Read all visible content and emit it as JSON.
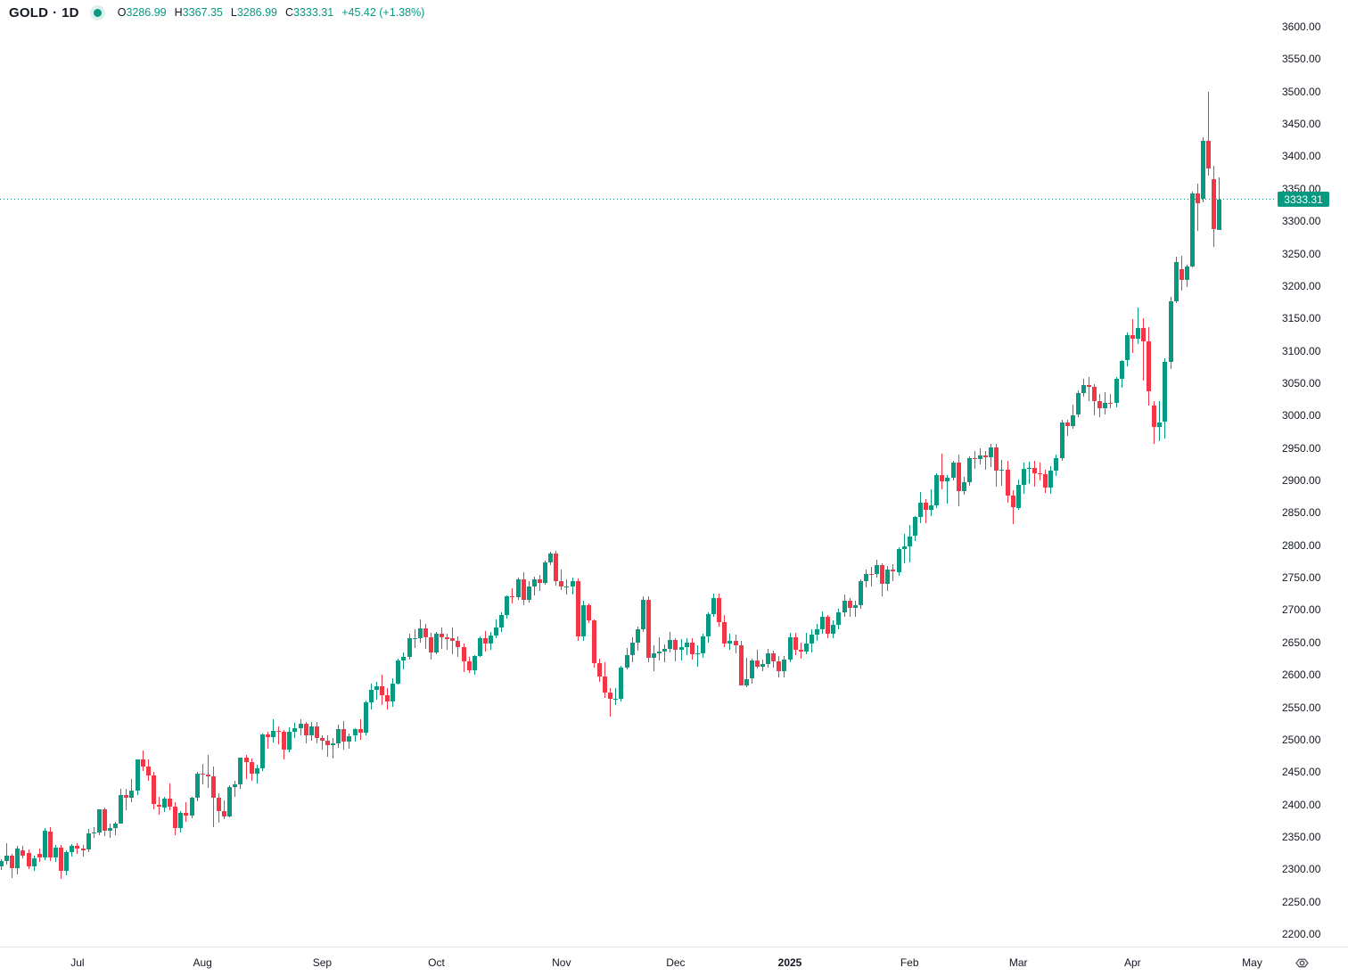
{
  "header": {
    "symbol": "GOLD",
    "separator": "·",
    "interval": "1D",
    "market_status_icon": "market-status-dot",
    "ohlc": {
      "open_label": "O",
      "open": "3286.99",
      "high_label": "H",
      "high": "3367.35",
      "low_label": "L",
      "low": "3286.99",
      "close_label": "C",
      "close": "3333.31",
      "change": "+45.42 (+1.38%)"
    }
  },
  "colors": {
    "up": "#089981",
    "down": "#F23645",
    "text": "#131722",
    "axis_separator": "#e0e3eb",
    "price_line": "#089981",
    "badge_bg": "#089981",
    "badge_text": "#ffffff"
  },
  "price_badge": {
    "label": "3333.31",
    "value": 3333.31
  },
  "chart_data": {
    "type": "candlestick",
    "symbol": "GOLD",
    "interval": "1D",
    "legend": "GOLD · 1D",
    "grid": "off",
    "y_axis": {
      "min": 2200,
      "max": 3600,
      "step": 50,
      "side": "right",
      "tick_labels": [
        "3600.00",
        "3550.00",
        "3500.00",
        "3450.00",
        "3400.00",
        "3350.00",
        "3300.00",
        "3250.00",
        "3200.00",
        "3150.00",
        "3100.00",
        "3050.00",
        "3000.00",
        "2950.00",
        "2900.00",
        "2850.00",
        "2800.00",
        "2750.00",
        "2700.00",
        "2650.00",
        "2600.00",
        "2550.00",
        "2500.00",
        "2450.00",
        "2400.00",
        "2350.00",
        "2300.00",
        "2250.00",
        "2200.00"
      ]
    },
    "x_axis": {
      "labels": [
        {
          "text": "Jul",
          "bar": 14
        },
        {
          "text": "Aug",
          "bar": 37
        },
        {
          "text": "Sep",
          "bar": 59
        },
        {
          "text": "Oct",
          "bar": 80
        },
        {
          "text": "Nov",
          "bar": 103
        },
        {
          "text": "Dec",
          "bar": 124
        },
        {
          "text": "2025",
          "bar": 145,
          "emphasis": true
        },
        {
          "text": "Feb",
          "bar": 167
        },
        {
          "text": "Mar",
          "bar": 187
        },
        {
          "text": "Apr",
          "bar": 208
        },
        {
          "text": "May",
          "bar": 230
        }
      ]
    },
    "last_price": 3333.31,
    "bars_are_ohlc": "each bar = [open, high, low, close]",
    "bars": [
      [
        2305,
        2316,
        2299,
        2313
      ],
      [
        2313,
        2341,
        2308,
        2321
      ],
      [
        2321,
        2324,
        2286,
        2302
      ],
      [
        2302,
        2336,
        2292,
        2332
      ],
      [
        2330,
        2336,
        2317,
        2321
      ],
      [
        2325,
        2331,
        2300,
        2305
      ],
      [
        2305,
        2321,
        2298,
        2317
      ],
      [
        2324,
        2332,
        2311,
        2318
      ],
      [
        2318,
        2364,
        2314,
        2360
      ],
      [
        2358,
        2365,
        2313,
        2318
      ],
      [
        2318,
        2337,
        2311,
        2334
      ],
      [
        2334,
        2338,
        2285,
        2297
      ],
      [
        2297,
        2330,
        2291,
        2327
      ],
      [
        2327,
        2339,
        2319,
        2336
      ],
      [
        2336,
        2341,
        2324,
        2332
      ],
      [
        2332,
        2338,
        2319,
        2330
      ],
      [
        2330,
        2362,
        2327,
        2356
      ],
      [
        2356,
        2365,
        2349,
        2357
      ],
      [
        2357,
        2393,
        2352,
        2392
      ],
      [
        2392,
        2395,
        2351,
        2359
      ],
      [
        2359,
        2371,
        2348,
        2364
      ],
      [
        2364,
        2374,
        2353,
        2371
      ],
      [
        2371,
        2424,
        2370,
        2415
      ],
      [
        2415,
        2424,
        2391,
        2411
      ],
      [
        2411,
        2440,
        2404,
        2422
      ],
      [
        2422,
        2470,
        2414,
        2469
      ],
      [
        2469,
        2483,
        2452,
        2459
      ],
      [
        2459,
        2470,
        2437,
        2445
      ],
      [
        2445,
        2451,
        2392,
        2400
      ],
      [
        2400,
        2412,
        2384,
        2396
      ],
      [
        2396,
        2412,
        2388,
        2409
      ],
      [
        2409,
        2432,
        2391,
        2397
      ],
      [
        2397,
        2404,
        2353,
        2364
      ],
      [
        2364,
        2390,
        2356,
        2387
      ],
      [
        2387,
        2403,
        2373,
        2383
      ],
      [
        2383,
        2412,
        2378,
        2410
      ],
      [
        2410,
        2450,
        2405,
        2447
      ],
      [
        2447,
        2463,
        2431,
        2446
      ],
      [
        2446,
        2477,
        2425,
        2443
      ],
      [
        2443,
        2458,
        2365,
        2410
      ],
      [
        2410,
        2418,
        2372,
        2390
      ],
      [
        2390,
        2407,
        2378,
        2382
      ],
      [
        2382,
        2430,
        2380,
        2427
      ],
      [
        2427,
        2436,
        2412,
        2431
      ],
      [
        2431,
        2473,
        2424,
        2472
      ],
      [
        2472,
        2477,
        2439,
        2465
      ],
      [
        2465,
        2471,
        2437,
        2448
      ],
      [
        2448,
        2462,
        2432,
        2456
      ],
      [
        2456,
        2510,
        2452,
        2508
      ],
      [
        2508,
        2512,
        2486,
        2504
      ],
      [
        2504,
        2532,
        2496,
        2514
      ],
      [
        2514,
        2521,
        2493,
        2512
      ],
      [
        2512,
        2515,
        2470,
        2484
      ],
      [
        2484,
        2519,
        2480,
        2512
      ],
      [
        2512,
        2526,
        2503,
        2518
      ],
      [
        2518,
        2532,
        2507,
        2524
      ],
      [
        2524,
        2528,
        2494,
        2507
      ],
      [
        2507,
        2527,
        2498,
        2521
      ],
      [
        2521,
        2528,
        2494,
        2503
      ],
      [
        2503,
        2507,
        2485,
        2499
      ],
      [
        2499,
        2507,
        2473,
        2492
      ],
      [
        2492,
        2502,
        2471,
        2494
      ],
      [
        2494,
        2523,
        2487,
        2516
      ],
      [
        2516,
        2529,
        2485,
        2497
      ],
      [
        2497,
        2510,
        2486,
        2506
      ],
      [
        2506,
        2518,
        2497,
        2516
      ],
      [
        2516,
        2532,
        2500,
        2511
      ],
      [
        2511,
        2560,
        2507,
        2558
      ],
      [
        2558,
        2586,
        2547,
        2577
      ],
      [
        2577,
        2589,
        2562,
        2582
      ],
      [
        2582,
        2600,
        2553,
        2569
      ],
      [
        2569,
        2580,
        2546,
        2559
      ],
      [
        2559,
        2595,
        2551,
        2587
      ],
      [
        2587,
        2625,
        2585,
        2622
      ],
      [
        2622,
        2635,
        2609,
        2628
      ],
      [
        2628,
        2664,
        2623,
        2657
      ],
      [
        2657,
        2670,
        2641,
        2657
      ],
      [
        2657,
        2685,
        2650,
        2672
      ],
      [
        2672,
        2679,
        2640,
        2658
      ],
      [
        2658,
        2665,
        2624,
        2635
      ],
      [
        2635,
        2666,
        2632,
        2663
      ],
      [
        2663,
        2673,
        2640,
        2658
      ],
      [
        2658,
        2663,
        2639,
        2656
      ],
      [
        2656,
        2673,
        2632,
        2653
      ],
      [
        2653,
        2659,
        2628,
        2643
      ],
      [
        2643,
        2648,
        2604,
        2621
      ],
      [
        2621,
        2628,
        2603,
        2607
      ],
      [
        2607,
        2631,
        2600,
        2629
      ],
      [
        2629,
        2659,
        2627,
        2657
      ],
      [
        2657,
        2668,
        2636,
        2648
      ],
      [
        2648,
        2666,
        2639,
        2661
      ],
      [
        2661,
        2685,
        2657,
        2673
      ],
      [
        2673,
        2697,
        2666,
        2692
      ],
      [
        2692,
        2722,
        2687,
        2721
      ],
      [
        2721,
        2733,
        2710,
        2720
      ],
      [
        2720,
        2750,
        2715,
        2748
      ],
      [
        2748,
        2759,
        2708,
        2716
      ],
      [
        2716,
        2744,
        2711,
        2736
      ],
      [
        2736,
        2752,
        2723,
        2747
      ],
      [
        2747,
        2754,
        2730,
        2742
      ],
      [
        2742,
        2776,
        2739,
        2774
      ],
      [
        2774,
        2790,
        2770,
        2787
      ],
      [
        2787,
        2792,
        2738,
        2744
      ],
      [
        2744,
        2762,
        2731,
        2736
      ],
      [
        2736,
        2748,
        2724,
        2736
      ],
      [
        2736,
        2750,
        2724,
        2744
      ],
      [
        2744,
        2749,
        2652,
        2659
      ],
      [
        2659,
        2715,
        2652,
        2707
      ],
      [
        2707,
        2710,
        2680,
        2684
      ],
      [
        2684,
        2686,
        2611,
        2618
      ],
      [
        2618,
        2625,
        2589,
        2598
      ],
      [
        2598,
        2619,
        2565,
        2573
      ],
      [
        2573,
        2580,
        2536,
        2563
      ],
      [
        2563,
        2580,
        2554,
        2563
      ],
      [
        2563,
        2614,
        2559,
        2611
      ],
      [
        2611,
        2642,
        2608,
        2631
      ],
      [
        2631,
        2658,
        2619,
        2650
      ],
      [
        2650,
        2674,
        2637,
        2670
      ],
      [
        2670,
        2721,
        2666,
        2716
      ],
      [
        2716,
        2721,
        2619,
        2626
      ],
      [
        2626,
        2645,
        2605,
        2633
      ],
      [
        2633,
        2658,
        2622,
        2636
      ],
      [
        2636,
        2647,
        2620,
        2640
      ],
      [
        2640,
        2666,
        2634,
        2654
      ],
      [
        2654,
        2657,
        2621,
        2639
      ],
      [
        2639,
        2655,
        2622,
        2643
      ],
      [
        2643,
        2657,
        2631,
        2650
      ],
      [
        2650,
        2656,
        2623,
        2632
      ],
      [
        2632,
        2645,
        2613,
        2633
      ],
      [
        2633,
        2664,
        2626,
        2659
      ],
      [
        2659,
        2697,
        2650,
        2694
      ],
      [
        2694,
        2726,
        2689,
        2718
      ],
      [
        2718,
        2726,
        2675,
        2681
      ],
      [
        2681,
        2692,
        2643,
        2648
      ],
      [
        2648,
        2664,
        2639,
        2653
      ],
      [
        2653,
        2662,
        2633,
        2646
      ],
      [
        2646,
        2652,
        2583,
        2584
      ],
      [
        2584,
        2626,
        2581,
        2594
      ],
      [
        2594,
        2625,
        2587,
        2622
      ],
      [
        2622,
        2639,
        2610,
        2613
      ],
      [
        2613,
        2624,
        2606,
        2617
      ],
      [
        2617,
        2640,
        2611,
        2633
      ],
      [
        2633,
        2638,
        2611,
        2621
      ],
      [
        2621,
        2629,
        2596,
        2606
      ],
      [
        2606,
        2629,
        2596,
        2624
      ],
      [
        2624,
        2665,
        2620,
        2658
      ],
      [
        2658,
        2665,
        2630,
        2639
      ],
      [
        2639,
        2650,
        2625,
        2636
      ],
      [
        2636,
        2665,
        2632,
        2648
      ],
      [
        2648,
        2670,
        2635,
        2662
      ],
      [
        2662,
        2679,
        2652,
        2670
      ],
      [
        2670,
        2698,
        2664,
        2690
      ],
      [
        2690,
        2693,
        2656,
        2663
      ],
      [
        2663,
        2684,
        2656,
        2677
      ],
      [
        2677,
        2702,
        2670,
        2696
      ],
      [
        2696,
        2724,
        2690,
        2714
      ],
      [
        2714,
        2719,
        2690,
        2703
      ],
      [
        2703,
        2714,
        2689,
        2708
      ],
      [
        2708,
        2748,
        2702,
        2744
      ],
      [
        2744,
        2763,
        2735,
        2756
      ],
      [
        2756,
        2767,
        2736,
        2755
      ],
      [
        2755,
        2777,
        2750,
        2770
      ],
      [
        2770,
        2772,
        2721,
        2740
      ],
      [
        2740,
        2768,
        2730,
        2763
      ],
      [
        2763,
        2771,
        2744,
        2759
      ],
      [
        2759,
        2797,
        2753,
        2794
      ],
      [
        2794,
        2817,
        2772,
        2798
      ],
      [
        2798,
        2831,
        2773,
        2814
      ],
      [
        2814,
        2845,
        2807,
        2844
      ],
      [
        2844,
        2882,
        2834,
        2866
      ],
      [
        2866,
        2871,
        2834,
        2855
      ],
      [
        2855,
        2887,
        2845,
        2861
      ],
      [
        2861,
        2911,
        2858,
        2908
      ],
      [
        2908,
        2942,
        2887,
        2898
      ],
      [
        2898,
        2909,
        2864,
        2904
      ],
      [
        2904,
        2930,
        2900,
        2928
      ],
      [
        2928,
        2940,
        2860,
        2883
      ],
      [
        2883,
        2905,
        2878,
        2897
      ],
      [
        2897,
        2937,
        2892,
        2935
      ],
      [
        2935,
        2946,
        2918,
        2933
      ],
      [
        2933,
        2950,
        2924,
        2939
      ],
      [
        2939,
        2945,
        2917,
        2936
      ],
      [
        2936,
        2956,
        2920,
        2951
      ],
      [
        2951,
        2956,
        2891,
        2915
      ],
      [
        2915,
        2932,
        2892,
        2916
      ],
      [
        2916,
        2930,
        2865,
        2877
      ],
      [
        2877,
        2885,
        2832,
        2858
      ],
      [
        2858,
        2902,
        2855,
        2893
      ],
      [
        2893,
        2927,
        2880,
        2918
      ],
      [
        2918,
        2929,
        2894,
        2919
      ],
      [
        2919,
        2930,
        2891,
        2911
      ],
      [
        2911,
        2928,
        2900,
        2910
      ],
      [
        2910,
        2917,
        2880,
        2889
      ],
      [
        2889,
        2922,
        2880,
        2915
      ],
      [
        2915,
        2940,
        2907,
        2934
      ],
      [
        2934,
        2994,
        2930,
        2989
      ],
      [
        2989,
        2994,
        2968,
        2984
      ],
      [
        2984,
        3017,
        2980,
        3001
      ],
      [
        3001,
        3039,
        2998,
        3035
      ],
      [
        3035,
        3057,
        3029,
        3047
      ],
      [
        3047,
        3059,
        3022,
        3044
      ],
      [
        3044,
        3048,
        3000,
        3023
      ],
      [
        3023,
        3033,
        2997,
        3011
      ],
      [
        3011,
        3036,
        3002,
        3020
      ],
      [
        3020,
        3033,
        3012,
        3019
      ],
      [
        3019,
        3059,
        3013,
        3057
      ],
      [
        3057,
        3086,
        3043,
        3085
      ],
      [
        3085,
        3128,
        3076,
        3124
      ],
      [
        3124,
        3149,
        3097,
        3118
      ],
      [
        3118,
        3167,
        3110,
        3135
      ],
      [
        3135,
        3150,
        3054,
        3115
      ],
      [
        3115,
        3136,
        3015,
        3038
      ],
      [
        3015,
        3022,
        2956,
        2982
      ],
      [
        2982,
        3022,
        2960,
        2990
      ],
      [
        2990,
        3088,
        2964,
        3083
      ],
      [
        3083,
        3184,
        3072,
        3176
      ],
      [
        3176,
        3245,
        3173,
        3237
      ],
      [
        3226,
        3246,
        3193,
        3210
      ],
      [
        3210,
        3233,
        3198,
        3230
      ],
      [
        3230,
        3345,
        3228,
        3343
      ],
      [
        3343,
        3358,
        3285,
        3327
      ],
      [
        3334,
        3430,
        3329,
        3424
      ],
      [
        3424,
        3500,
        3370,
        3381
      ],
      [
        3365,
        3386,
        3260,
        3288
      ],
      [
        3286.99,
        3367.35,
        3286.99,
        3333.31
      ]
    ]
  }
}
